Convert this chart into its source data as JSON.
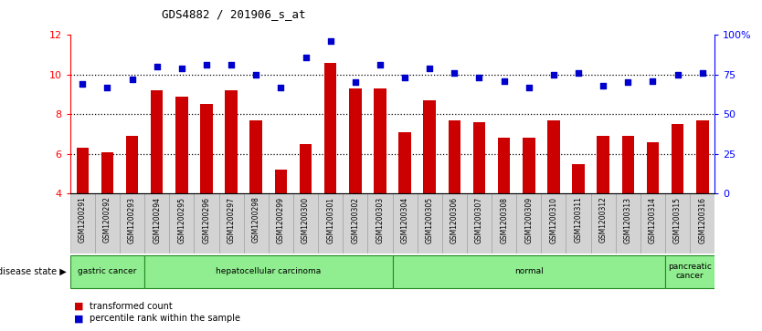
{
  "title": "GDS4882 / 201906_s_at",
  "samples": [
    "GSM1200291",
    "GSM1200292",
    "GSM1200293",
    "GSM1200294",
    "GSM1200295",
    "GSM1200296",
    "GSM1200297",
    "GSM1200298",
    "GSM1200299",
    "GSM1200300",
    "GSM1200301",
    "GSM1200302",
    "GSM1200303",
    "GSM1200304",
    "GSM1200305",
    "GSM1200306",
    "GSM1200307",
    "GSM1200308",
    "GSM1200309",
    "GSM1200310",
    "GSM1200311",
    "GSM1200312",
    "GSM1200313",
    "GSM1200314",
    "GSM1200315",
    "GSM1200316"
  ],
  "transformed_count": [
    6.3,
    6.1,
    6.9,
    9.2,
    8.9,
    8.5,
    9.2,
    7.7,
    5.2,
    6.5,
    10.6,
    9.3,
    9.3,
    7.1,
    8.7,
    7.7,
    7.6,
    6.8,
    6.8,
    7.7,
    5.5,
    6.9,
    6.9,
    6.6,
    7.5,
    7.7
  ],
  "percentile_rank": [
    69,
    67,
    72,
    80,
    79,
    81,
    81,
    75,
    67,
    86,
    96,
    70,
    81,
    73,
    79,
    76,
    73,
    71,
    67,
    75,
    76,
    68,
    70,
    71,
    75,
    76
  ],
  "ylim_left": [
    4,
    12
  ],
  "ylim_right": [
    0,
    100
  ],
  "yticks_left": [
    4,
    6,
    8,
    10,
    12
  ],
  "yticks_right": [
    0,
    25,
    50,
    75,
    100
  ],
  "ytick_right_labels": [
    "0",
    "25",
    "50",
    "75",
    "100%"
  ],
  "bar_color": "#CC0000",
  "dot_color": "#0000CC",
  "bg_color": "#FFFFFF",
  "bar_width": 0.5,
  "legend_bar_label": "transformed count",
  "legend_dot_label": "percentile rank within the sample",
  "disease_groups": [
    {
      "label": "gastric cancer",
      "start": 0,
      "end": 3
    },
    {
      "label": "hepatocellular carcinoma",
      "start": 3,
      "end": 13
    },
    {
      "label": "normal",
      "start": 13,
      "end": 24
    },
    {
      "label": "pancreatic\ncancer",
      "start": 24,
      "end": 26
    }
  ],
  "group_color": "#90EE90",
  "group_border_color": "#228B22",
  "tick_cell_color": "#D3D3D3",
  "tick_cell_border": "#999999",
  "hgrid_values": [
    6,
    8,
    10
  ]
}
